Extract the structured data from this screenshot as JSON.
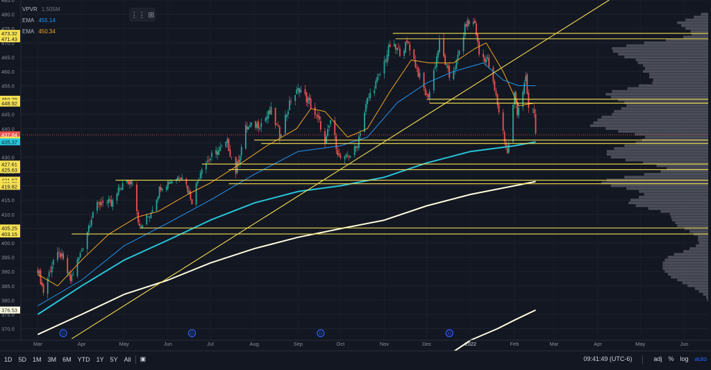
{
  "legend": {
    "vpvr_label": "VPVR",
    "vpvr_value": "1.505M",
    "ema1_label": "EMA",
    "ema1_value": "455.14",
    "ema2_label": "EMA",
    "ema2_value": "450.34"
  },
  "footer": {
    "ranges": [
      "1D",
      "5D",
      "1M",
      "3M",
      "6M",
      "YTD",
      "1Y",
      "5Y",
      "All"
    ],
    "time": "09:41:49 (UTC-6)",
    "adj": "adj",
    "pct": "%",
    "log": "log",
    "auto": "auto"
  },
  "icons": {
    "layout": "layout-grid-icon",
    "goto_date": "calendar-icon",
    "dividend": "dividend-marker-icon"
  },
  "colors": {
    "background": "#131722",
    "up": "#26a69a",
    "down": "#ef5350",
    "ema_fast": "#f5a623",
    "ema_mid": "#2196f3",
    "ma_cyan": "#26c6da",
    "ma_long": "#fffde0",
    "levels": "#f5e050",
    "trendline": "#f5e050",
    "volume_profile": "#5d606b",
    "price_badge_yellow": "#f5e050",
    "price_badge_cyan": "#26c6da"
  },
  "chart_data": {
    "type": "candlestick",
    "symbol_indicators": [
      "VPVR",
      "EMA",
      "EMA"
    ],
    "ylim": [
      366,
      485
    ],
    "y_ticks": [
      370,
      375,
      380,
      385,
      390,
      395,
      400,
      405,
      410,
      415,
      420,
      425,
      430,
      435,
      440,
      445,
      450,
      455,
      460,
      465,
      470,
      475,
      480,
      485
    ],
    "x_labels": [
      "Mar",
      "Apr",
      "May",
      "Jun",
      "Jul",
      "Aug",
      "Sep",
      "Oct",
      "Nov",
      "Dec",
      "2022",
      "Feb",
      "Mar",
      "Apr",
      "May",
      "Jun"
    ],
    "price_badges": [
      {
        "value": "473.32",
        "type": "level"
      },
      {
        "value": "471.43",
        "type": "level"
      },
      {
        "value": "450.29",
        "type": "level"
      },
      {
        "value": "448.92",
        "type": "level"
      },
      {
        "value": "437.84",
        "type": "last"
      },
      {
        "value": "435.99",
        "type": "level"
      },
      {
        "value": "435.37",
        "type": "ma"
      },
      {
        "value": "427.61",
        "type": "level"
      },
      {
        "value": "425.63",
        "type": "level"
      },
      {
        "value": "421.97",
        "type": "level"
      },
      {
        "value": "420.72",
        "type": "level"
      },
      {
        "value": "419.82",
        "type": "level"
      },
      {
        "value": "405.25",
        "type": "level"
      },
      {
        "value": "403.15",
        "type": "level"
      },
      {
        "value": "376.53",
        "type": "ma"
      }
    ],
    "horizontal_levels": [
      {
        "price": 473.32,
        "from": "2021-11-07"
      },
      {
        "price": 471.43,
        "from": "2021-11-09"
      },
      {
        "price": 450.29,
        "from": "2021-12-01"
      },
      {
        "price": 448.92,
        "from": "2021-12-03"
      },
      {
        "price": 435.99,
        "from": "2021-08-01"
      },
      {
        "price": 434.8,
        "from": "2021-08-06"
      },
      {
        "price": 427.61,
        "from": "2021-06-25"
      },
      {
        "price": 425.63,
        "from": "2021-07-14"
      },
      {
        "price": 421.97,
        "from": "2021-04-25"
      },
      {
        "price": 420.72,
        "from": "2021-07-14"
      },
      {
        "price": 405.25,
        "from": "2021-05-12"
      },
      {
        "price": 403.15,
        "from": "2021-03-25"
      }
    ],
    "trendline": {
      "start": [
        "2021-03-25",
        366.5
      ],
      "end": [
        "2022-04-09",
        485
      ]
    },
    "dividend_markers": [
      "2021-03-19",
      "2021-06-18",
      "2021-09-17",
      "2021-12-17"
    ],
    "series": [
      {
        "name": "EMA",
        "color": "#f5a623",
        "points": [
          [
            "2021-03-01",
            389
          ],
          [
            "2021-03-15",
            385
          ],
          [
            "2021-04-01",
            394
          ],
          [
            "2021-04-20",
            403
          ],
          [
            "2021-05-10",
            409
          ],
          [
            "2021-05-25",
            411
          ],
          [
            "2021-06-15",
            417
          ],
          [
            "2021-07-01",
            421
          ],
          [
            "2021-07-20",
            427
          ],
          [
            "2021-08-10",
            434
          ],
          [
            "2021-08-31",
            440
          ],
          [
            "2021-09-10",
            447
          ],
          [
            "2021-09-20",
            446
          ],
          [
            "2021-10-06",
            437
          ],
          [
            "2021-10-20",
            440
          ],
          [
            "2021-11-05",
            453
          ],
          [
            "2021-11-20",
            464
          ],
          [
            "2021-12-03",
            463
          ],
          [
            "2021-12-20",
            463
          ],
          [
            "2022-01-04",
            468
          ],
          [
            "2022-01-12",
            470
          ],
          [
            "2022-01-24",
            460
          ],
          [
            "2022-02-04",
            448
          ],
          [
            "2022-02-16",
            449
          ]
        ]
      },
      {
        "name": "EMA",
        "color": "#2196f3",
        "points": [
          [
            "2021-03-01",
            378
          ],
          [
            "2021-04-01",
            387
          ],
          [
            "2021-05-01",
            399
          ],
          [
            "2021-06-01",
            407
          ],
          [
            "2021-07-01",
            415
          ],
          [
            "2021-08-01",
            424
          ],
          [
            "2021-09-01",
            432
          ],
          [
            "2021-10-01",
            434
          ],
          [
            "2021-10-20",
            437
          ],
          [
            "2021-11-10",
            449
          ],
          [
            "2021-12-01",
            456
          ],
          [
            "2021-12-20",
            460
          ],
          [
            "2022-01-10",
            463
          ],
          [
            "2022-01-24",
            457
          ],
          [
            "2022-02-04",
            455
          ],
          [
            "2022-02-16",
            455
          ]
        ]
      },
      {
        "name": "",
        "color": "#26c6da",
        "points": [
          [
            "2021-03-01",
            375
          ],
          [
            "2021-04-01",
            385
          ],
          [
            "2021-05-01",
            394
          ],
          [
            "2021-06-01",
            401
          ],
          [
            "2021-07-01",
            408
          ],
          [
            "2021-08-01",
            414
          ],
          [
            "2021-09-01",
            418
          ],
          [
            "2021-10-01",
            420
          ],
          [
            "2021-11-01",
            423
          ],
          [
            "2021-12-01",
            428
          ],
          [
            "2022-01-01",
            432
          ],
          [
            "2022-02-01",
            434
          ],
          [
            "2022-02-16",
            435.37
          ]
        ]
      },
      {
        "name": "",
        "color": "#fffde0",
        "points": [
          [
            "2021-03-01",
            368
          ],
          [
            "2021-04-01",
            375
          ],
          [
            "2021-05-01",
            382
          ],
          [
            "2021-06-01",
            387
          ],
          [
            "2021-07-01",
            393
          ],
          [
            "2021-08-01",
            398
          ],
          [
            "2021-09-01",
            402
          ],
          [
            "2021-10-01",
            405
          ],
          [
            "2021-11-01",
            408
          ],
          [
            "2021-12-01",
            413
          ],
          [
            "2022-01-01",
            417
          ],
          [
            "2022-02-01",
            420
          ],
          [
            "2022-02-16",
            421.5
          ]
        ]
      },
      {
        "name": "",
        "color": "#fffde0",
        "points": [
          [
            "2021-12-20",
            362
          ],
          [
            "2022-01-01",
            366
          ],
          [
            "2022-01-20",
            370
          ],
          [
            "2022-02-01",
            373
          ],
          [
            "2022-02-16",
            376.53
          ]
        ]
      }
    ],
    "close_path": [
      [
        "2021-03-01",
        391
      ],
      [
        "2021-03-05",
        383
      ],
      [
        "2021-03-12",
        394
      ],
      [
        "2021-03-17",
        396
      ],
      [
        "2021-03-24",
        387
      ],
      [
        "2021-03-31",
        396
      ],
      [
        "2021-04-09",
        411
      ],
      [
        "2021-04-16",
        415
      ],
      [
        "2021-04-22",
        413
      ],
      [
        "2021-04-29",
        420
      ],
      [
        "2021-05-07",
        422
      ],
      [
        "2021-05-12",
        405
      ],
      [
        "2021-05-19",
        410
      ],
      [
        "2021-05-27",
        420
      ],
      [
        "2021-06-04",
        422
      ],
      [
        "2021-06-11",
        424
      ],
      [
        "2021-06-18",
        415
      ],
      [
        "2021-06-25",
        427
      ],
      [
        "2021-07-06",
        432
      ],
      [
        "2021-07-13",
        435
      ],
      [
        "2021-07-19",
        425
      ],
      [
        "2021-07-26",
        440
      ],
      [
        "2021-08-06",
        442
      ],
      [
        "2021-08-13",
        446
      ],
      [
        "2021-08-19",
        438
      ],
      [
        "2021-08-27",
        450
      ],
      [
        "2021-09-02",
        454
      ],
      [
        "2021-09-09",
        449
      ],
      [
        "2021-09-17",
        441
      ],
      [
        "2021-09-20",
        434
      ],
      [
        "2021-09-24",
        443
      ],
      [
        "2021-09-30",
        430
      ],
      [
        "2021-10-04",
        429
      ],
      [
        "2021-10-12",
        433
      ],
      [
        "2021-10-20",
        450
      ],
      [
        "2021-10-29",
        459
      ],
      [
        "2021-11-05",
        469
      ],
      [
        "2021-11-12",
        467
      ],
      [
        "2021-11-18",
        470
      ],
      [
        "2021-11-26",
        458
      ],
      [
        "2021-12-01",
        451
      ],
      [
        "2021-12-03",
        453
      ],
      [
        "2021-12-10",
        470
      ],
      [
        "2021-12-17",
        458
      ],
      [
        "2021-12-22",
        463
      ],
      [
        "2021-12-29",
        477
      ],
      [
        "2022-01-04",
        477
      ],
      [
        "2022-01-07",
        466
      ],
      [
        "2022-01-13",
        464
      ],
      [
        "2022-01-19",
        451
      ],
      [
        "2022-01-24",
        439
      ],
      [
        "2022-01-27",
        431
      ],
      [
        "2022-02-01",
        452
      ],
      [
        "2022-02-03",
        446
      ],
      [
        "2022-02-09",
        457
      ],
      [
        "2022-02-11",
        447
      ],
      [
        "2022-02-15",
        446
      ],
      [
        "2022-02-16",
        437.84
      ]
    ]
  }
}
